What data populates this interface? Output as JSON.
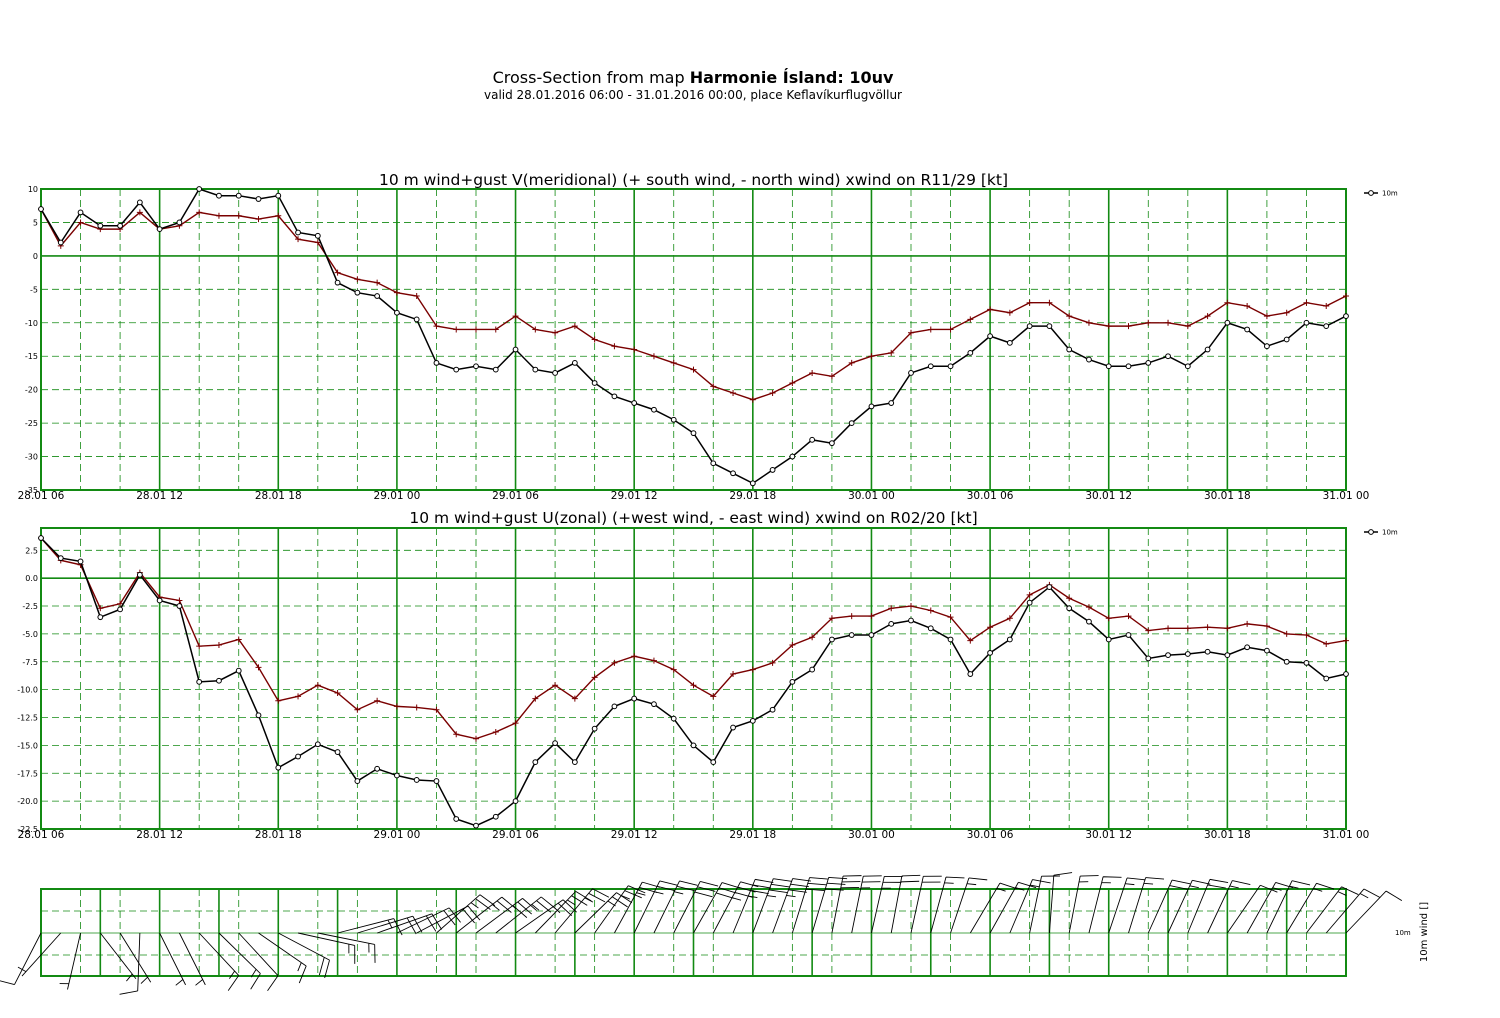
{
  "header": {
    "title_prefix": "Cross-Section from map ",
    "title_bold": "Harmonie Ísland: 10uv",
    "subtitle": "valid 28.01.2016 06:00 - 31.01.2016 00:00, place Keflavíkurflugvöllur"
  },
  "x_ticks": [
    "28.01 06",
    "28.01 12",
    "28.01 18",
    "29.01 00",
    "29.01 06",
    "29.01 12",
    "29.01 18",
    "30.01 00",
    "30.01 06",
    "30.01 12",
    "30.01 18",
    "31.01 00"
  ],
  "colors": {
    "grid": "#138a13",
    "wind": "#000000",
    "gust": "#7a0000"
  },
  "chart_data": [
    {
      "type": "line",
      "title": "10 m wind+gust V(meridional) (+ south wind, - north wind) xwind on R11/29 [kt]",
      "legend": "10m",
      "ylim": [
        -35,
        10
      ],
      "yticks": [
        "10",
        "5",
        "0",
        "-5",
        "-10",
        "-15",
        "-20",
        "-25",
        "-30",
        "-35"
      ],
      "ytick_values": [
        10,
        5,
        0,
        -5,
        -10,
        -15,
        -20,
        -25,
        -30,
        -35
      ],
      "x_hours": {
        "start": 0,
        "end": 66,
        "step": 1
      },
      "series": [
        {
          "name": "10m",
          "values": [
            7.0,
            2.0,
            6.5,
            4.5,
            4.5,
            8.0,
            4.0,
            5.0,
            10.0,
            9.0,
            9.0,
            8.5,
            9.0,
            3.5,
            3.0,
            -4.0,
            -5.5,
            -6.0,
            -8.5,
            -9.5,
            -16.0,
            -17.0,
            -16.5,
            -17.0,
            -14.0,
            -17.0,
            -17.5,
            -16.0,
            -19.0,
            -21.0,
            -22.0,
            -23.0,
            -24.5,
            -26.5,
            -31.0,
            -32.5,
            -34.0,
            -32.0,
            -30.0,
            -27.5,
            -28.0,
            -25.0,
            -22.5,
            -22.0,
            -17.5,
            -16.5,
            -16.5,
            -14.5,
            -12.0,
            -13.0,
            -10.5,
            -10.5,
            -14.0,
            -15.5,
            -16.5,
            -16.5,
            -16.0,
            -15.0,
            -16.5,
            -14.0,
            -10.0,
            -11.0,
            -13.5,
            -12.5,
            -10.0,
            -10.5,
            -9.0
          ]
        },
        {
          "name": "",
          "values": [
            7.0,
            1.5,
            5.0,
            4.0,
            4.0,
            6.5,
            4.0,
            4.5,
            6.5,
            6.0,
            6.0,
            5.5,
            6.0,
            2.5,
            2.0,
            -2.5,
            -3.5,
            -4.0,
            -5.5,
            -6.0,
            -10.5,
            -11.0,
            -11.0,
            -11.0,
            -9.0,
            -11.0,
            -11.5,
            -10.5,
            -12.5,
            -13.5,
            -14.0,
            -15.0,
            -16.0,
            -17.0,
            -19.5,
            -20.5,
            -21.5,
            -20.5,
            -19.0,
            -17.5,
            -18.0,
            -16.0,
            -15.0,
            -14.5,
            -11.5,
            -11.0,
            -11.0,
            -9.5,
            -8.0,
            -8.5,
            -7.0,
            -7.0,
            -9.0,
            -10.0,
            -10.5,
            -10.5,
            -10.0,
            -10.0,
            -10.5,
            -9.0,
            -7.0,
            -7.5,
            -9.0,
            -8.5,
            -7.0,
            -7.5,
            -6.0
          ]
        }
      ]
    },
    {
      "type": "line",
      "title": "10 m wind+gust U(zonal) (+west wind, - east wind) xwind on R02/20 [kt]",
      "legend": "10m",
      "ylim": [
        -22.5,
        4.5
      ],
      "yticks": [
        "2.5",
        "0.0",
        "-2.5",
        "-5.0",
        "-7.5",
        "-10.0",
        "-12.5",
        "-15.0",
        "-17.5",
        "-20.0",
        "-22.5"
      ],
      "ytick_values": [
        2.5,
        0,
        -2.5,
        -5,
        -7.5,
        -10,
        -12.5,
        -15,
        -17.5,
        -20,
        -22.5
      ],
      "x_hours": {
        "start": 0,
        "end": 66,
        "step": 1
      },
      "series": [
        {
          "name": "10m",
          "values": [
            3.6,
            1.8,
            1.5,
            -3.5,
            -2.8,
            0.3,
            -2.0,
            -2.5,
            -9.3,
            -9.2,
            -8.3,
            -12.3,
            -17.0,
            -16.0,
            -14.9,
            -15.6,
            -18.2,
            -17.1,
            -17.7,
            -18.1,
            -18.2,
            -21.6,
            -22.2,
            -21.4,
            -20.0,
            -16.5,
            -14.8,
            -16.5,
            -13.5,
            -11.5,
            -10.8,
            -11.3,
            -12.6,
            -15.0,
            -16.5,
            -13.4,
            -12.8,
            -11.8,
            -9.3,
            -8.2,
            -5.5,
            -5.1,
            -5.1,
            -4.1,
            -3.8,
            -4.5,
            -5.5,
            -8.6,
            -6.7,
            -5.5,
            -2.2,
            -0.8,
            -2.7,
            -3.9,
            -5.5,
            -5.1,
            -7.2,
            -6.9,
            -6.8,
            -6.6,
            -6.9,
            -6.2,
            -6.5,
            -7.5,
            -7.6,
            -9.0,
            -8.6
          ]
        },
        {
          "name": "",
          "values": [
            3.6,
            1.6,
            1.2,
            -2.7,
            -2.3,
            0.5,
            -1.7,
            -2.0,
            -6.1,
            -6.0,
            -5.5,
            -8.0,
            -11.0,
            -10.6,
            -9.6,
            -10.3,
            -11.8,
            -11.0,
            -11.5,
            -11.6,
            -11.8,
            -14.0,
            -14.4,
            -13.8,
            -13.0,
            -10.8,
            -9.6,
            -10.8,
            -8.9,
            -7.6,
            -7.0,
            -7.4,
            -8.2,
            -9.6,
            -10.6,
            -8.6,
            -8.2,
            -7.6,
            -6.0,
            -5.3,
            -3.6,
            -3.4,
            -3.4,
            -2.7,
            -2.5,
            -2.9,
            -3.5,
            -5.6,
            -4.4,
            -3.6,
            -1.5,
            -0.6,
            -1.8,
            -2.6,
            -3.6,
            -3.4,
            -4.7,
            -4.5,
            -4.5,
            -4.4,
            -4.5,
            -4.1,
            -4.3,
            -5.0,
            -5.1,
            -5.9,
            -5.6
          ]
        }
      ]
    },
    {
      "type": "barbs",
      "ylabel": "10m wind []",
      "level_label": "10m"
    }
  ]
}
